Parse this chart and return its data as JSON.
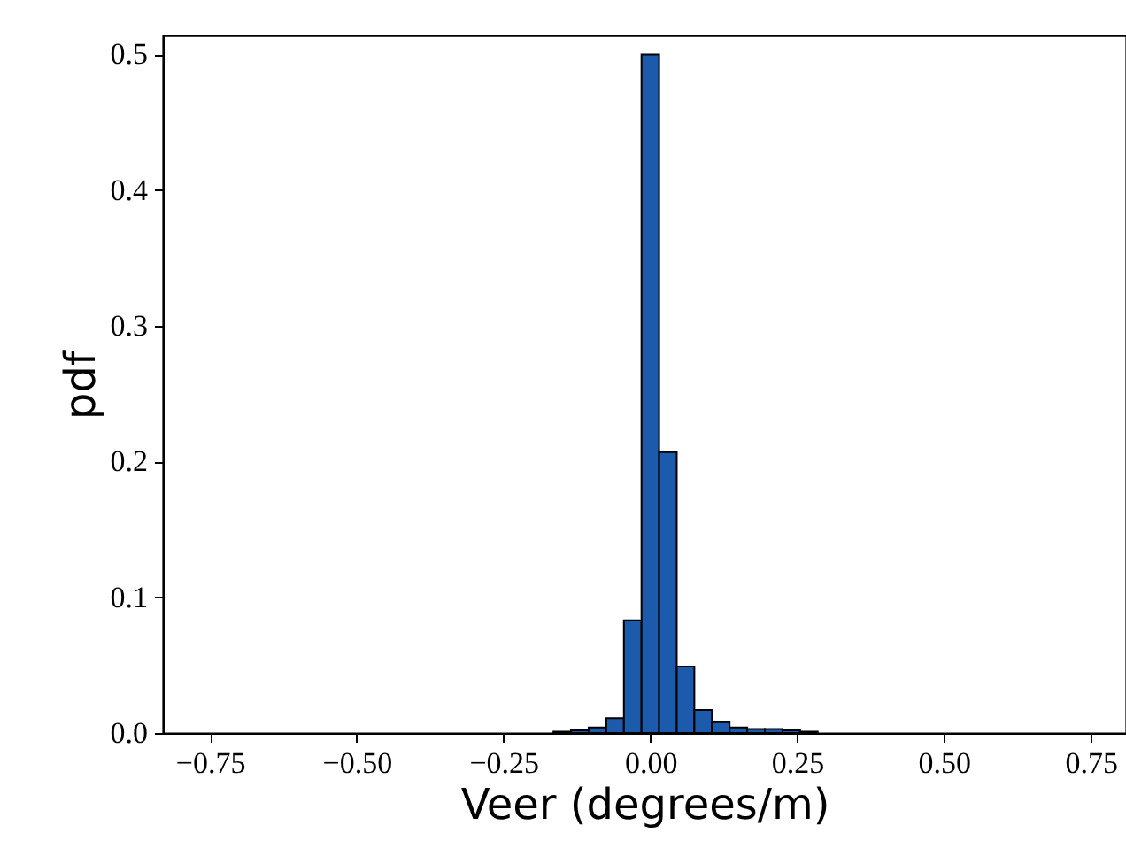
{
  "chart_data": {
    "type": "histogram",
    "xlabel": "Veer (degrees/m)",
    "ylabel": "pdf",
    "bins": [
      -0.165,
      -0.135,
      -0.105,
      -0.075,
      -0.045,
      -0.015,
      0.015,
      0.045,
      0.075,
      0.105,
      0.135,
      0.165,
      0.195,
      0.225,
      0.255,
      0.285
    ],
    "values": [
      0.001,
      0.002,
      0.004,
      0.011,
      0.083,
      0.5,
      0.207,
      0.049,
      0.017,
      0.008,
      0.004,
      0.003,
      0.003,
      0.002,
      0.001
    ],
    "color": "#1c5aab",
    "xlim": [
      -0.83,
      0.81
    ],
    "xticks": [
      {
        "value": -0.75,
        "label": "−0.75"
      },
      {
        "value": -0.5,
        "label": "−0.50"
      },
      {
        "value": -0.25,
        "label": "−0.25"
      },
      {
        "value": 0,
        "label": "0.00"
      },
      {
        "value": 0.25,
        "label": "0.25"
      },
      {
        "value": 0.5,
        "label": "0.50"
      },
      {
        "value": 0.75,
        "label": "0.75"
      }
    ],
    "ylim": [
      0,
      0.514
    ],
    "yticks": [
      {
        "value": 0,
        "label": "0.0"
      },
      0.1,
      0.2,
      0.3,
      0.4,
      0.5
    ],
    "grid": false
  }
}
